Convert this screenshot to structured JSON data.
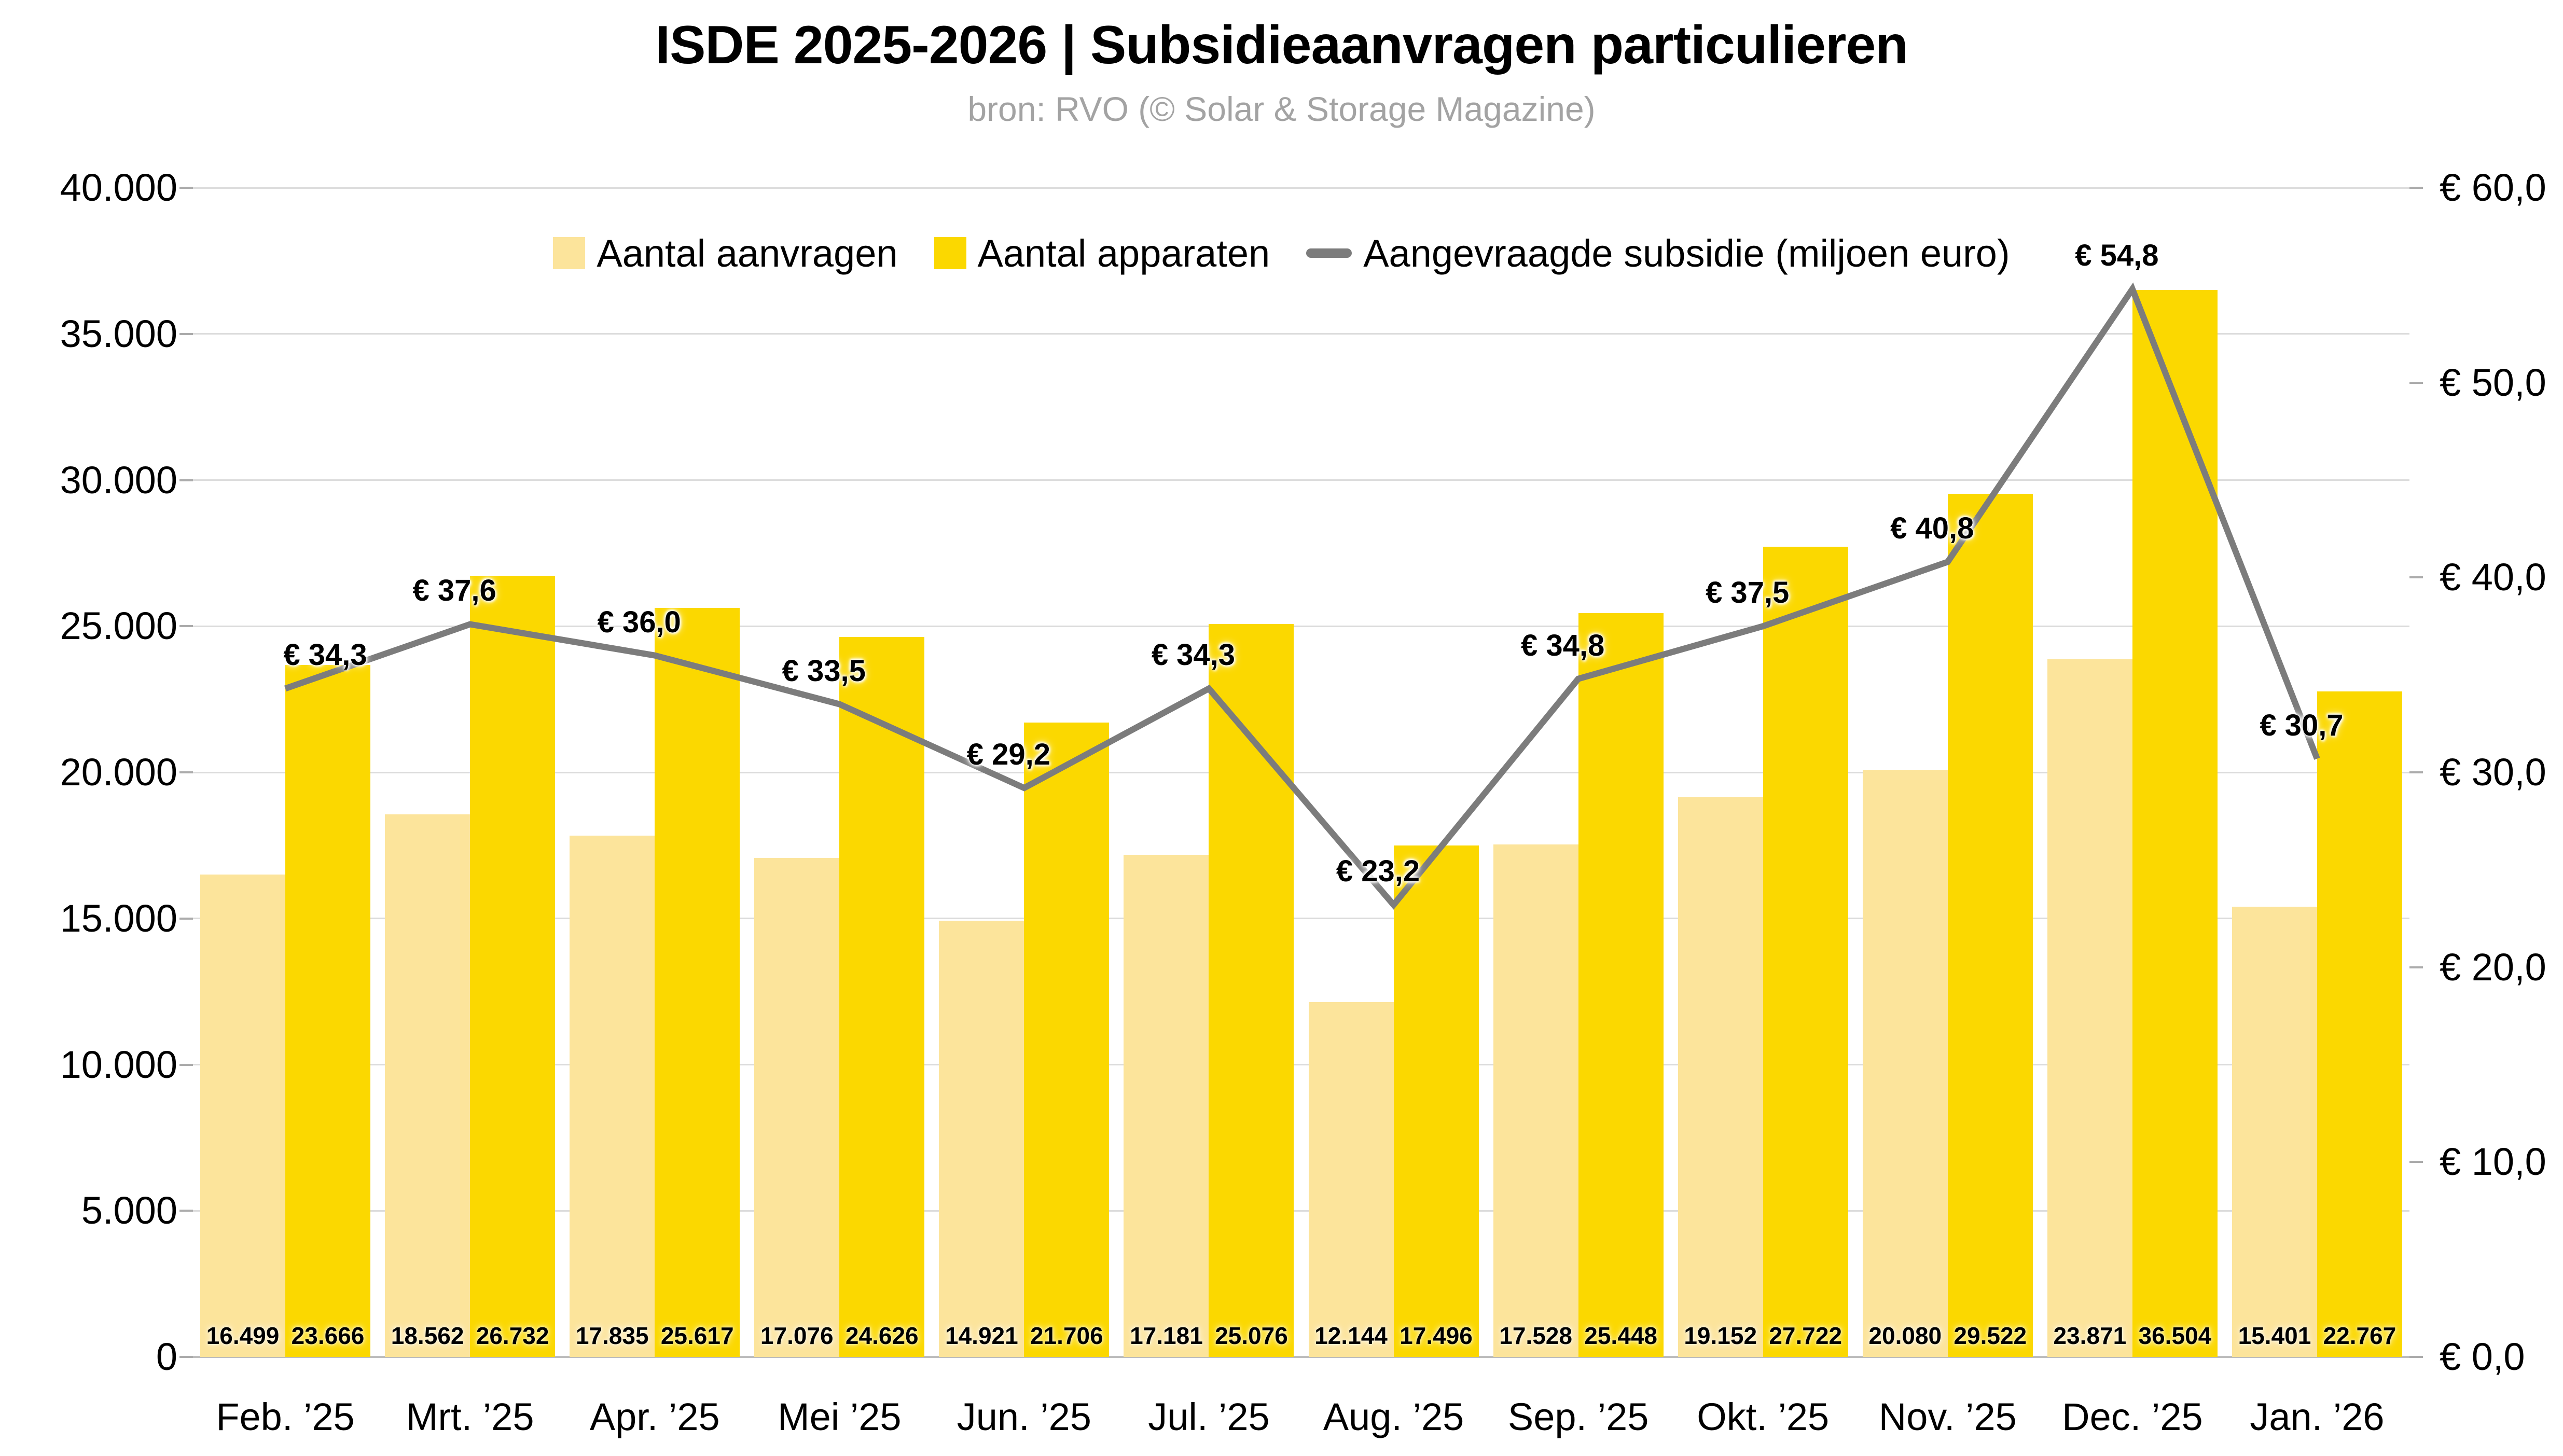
{
  "title": "ISDE 2025-2026 | Subsidieaanvragen particulieren",
  "subtitle": "bron: RVO (© Solar & Storage Magazine)",
  "legend": [
    {
      "label": "Aantal aanvragen",
      "swatch": "#FCE49B",
      "type": "square"
    },
    {
      "label": "Aantal apparaten",
      "swatch": "#FBD800",
      "type": "square"
    },
    {
      "label": "Aangevraagde subsidie (miljoen euro)",
      "swatch": "#7C7C7C",
      "type": "line"
    }
  ],
  "palette": {
    "gridline": "#DCDCDC",
    "baseline": "#BDBDBD",
    "tick": "#ABABAB",
    "subtitle_gray": "#A3A3A3",
    "label_text": "#000000"
  },
  "chart_data": {
    "type": "combo_bar_line",
    "title": "ISDE 2025-2026 | Subsidieaanvragen particulieren",
    "subtitle": "bron: RVO (© Solar & Storage Magazine)",
    "categories": [
      "Feb. ’25",
      "Mrt. ’25",
      "Apr. ’25",
      "Mei ’25",
      "Jun. ’25",
      "Jul. ’25",
      "Aug. ’25",
      "Sep. ’25",
      "Okt. ’25",
      "Nov. ’25",
      "Dec. ’25",
      "Jan. ’26"
    ],
    "series": [
      {
        "name": "Aantal aanvragen",
        "kind": "bar",
        "axis": "left",
        "color": "#FCE49B",
        "values": [
          16499,
          18562,
          17835,
          17076,
          14921,
          17181,
          12144,
          17528,
          19152,
          20080,
          23871,
          15401
        ],
        "value_labels": [
          "16.499",
          "18.562",
          "17.835",
          "17.076",
          "14.921",
          "17.181",
          "12.144",
          "17.528",
          "19.152",
          "20.080",
          "23.871",
          "15.401"
        ]
      },
      {
        "name": "Aantal apparaten",
        "kind": "bar",
        "axis": "left",
        "color": "#FBD800",
        "values": [
          23666,
          26732,
          25617,
          24626,
          21706,
          25076,
          17496,
          25448,
          27722,
          29522,
          36504,
          22767
        ],
        "value_labels": [
          "23.666",
          "26.732",
          "25.617",
          "24.626",
          "21.706",
          "25.076",
          "17.496",
          "25.448",
          "27.722",
          "29.522",
          "36.504",
          "22.767"
        ]
      },
      {
        "name": "Aangevraagde subsidie (miljoen euro)",
        "kind": "line",
        "axis": "right",
        "color": "#7C7C7C",
        "values": [
          34.3,
          37.6,
          36.0,
          33.5,
          29.2,
          34.3,
          23.2,
          34.8,
          37.5,
          40.8,
          54.8,
          30.7
        ],
        "value_labels": [
          "€ 34,3",
          "€ 37,6",
          "€ 36,0",
          "€ 33,5",
          "€ 29,2",
          "€ 34,3",
          "€ 23,2",
          "€ 34,8",
          "€ 37,5",
          "€ 40,8",
          "€ 54,8",
          "€ 30,7"
        ]
      }
    ],
    "left_axis": {
      "min": 0,
      "max": 40000,
      "step": 5000,
      "tick_labels": [
        "0",
        "5.000",
        "10.000",
        "15.000",
        "20.000",
        "25.000",
        "30.000",
        "35.000",
        "40.000"
      ]
    },
    "right_axis": {
      "min": 0,
      "max": 60,
      "step": 10,
      "tick_labels": [
        "€ 0,0",
        "€ 10,0",
        "€ 20,0",
        "€ 30,0",
        "€ 40,0",
        "€ 50,0",
        "€ 60,0"
      ]
    },
    "grid": "horizontal",
    "legend_position": "top"
  }
}
